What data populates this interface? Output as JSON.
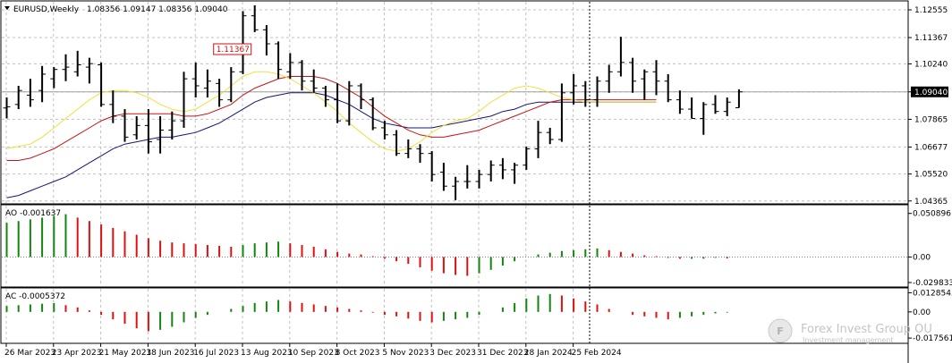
{
  "header": {
    "symbol": "EURUSD,Weekly",
    "ohlc": "1.08356 1.09147 1.08356 1.09040"
  },
  "watermark": {
    "brand": "Forex Invest Group OU",
    "tagline": "Investment management"
  },
  "colors": {
    "bar": "#000000",
    "grid": "#c0c0c0",
    "yellow_ma": "#f0e040",
    "red_ma": "#c81414",
    "blue_ma": "#141478",
    "ao_up": "#13860f",
    "ao_down": "#e01010"
  },
  "chart_data": [
    {
      "type": "ohlc",
      "title": "EURUSD,Weekly",
      "y_ticks": [
        "1.12555",
        "1.11367",
        "1.10240",
        "1.09040",
        "1.07865",
        "1.06677",
        "1.05520",
        "1.04365"
      ],
      "ylim": [
        1.0428,
        1.129
      ],
      "current_price": 1.0904,
      "annotated_high": "1.11367",
      "x_labels": [
        {
          "i": 0,
          "label": "26 Mar 2023"
        },
        {
          "i": 4,
          "label": "23 Apr 2023"
        },
        {
          "i": 8,
          "label": "21 May 2023"
        },
        {
          "i": 12,
          "label": "18 Jun 2023"
        },
        {
          "i": 16,
          "label": "16 Jul 2023"
        },
        {
          "i": 20,
          "label": "13 Aug 2023"
        },
        {
          "i": 24,
          "label": "10 Sep 2023"
        },
        {
          "i": 28,
          "label": "8 Oct 2023"
        },
        {
          "i": 32,
          "label": "5 Nov 2023"
        },
        {
          "i": 36,
          "label": "3 Dec 2023"
        },
        {
          "i": 40,
          "label": "31 Dec 2023"
        },
        {
          "i": 44,
          "label": "28 Jan 2024"
        },
        {
          "i": 48,
          "label": "25 Feb 2024"
        }
      ],
      "bars": [
        [
          1.0835,
          1.088,
          1.079,
          1.084
        ],
        [
          1.085,
          1.093,
          1.083,
          1.091
        ],
        [
          1.089,
          1.096,
          1.084,
          1.087
        ],
        [
          1.091,
          1.1015,
          1.086,
          1.098
        ],
        [
          1.096,
          1.101,
          1.092,
          1.1
        ],
        [
          1.1,
          1.1065,
          1.095,
          1.101
        ],
        [
          1.099,
          1.108,
          1.097,
          1.102
        ],
        [
          1.101,
          1.105,
          1.094,
          1.1025
        ],
        [
          1.102,
          1.103,
          1.084,
          1.085
        ],
        [
          1.085,
          1.091,
          1.077,
          1.08
        ],
        [
          1.08,
          1.083,
          1.069,
          1.071
        ],
        [
          1.072,
          1.08,
          1.07,
          1.076
        ],
        [
          1.076,
          1.083,
          1.064,
          1.069
        ],
        [
          1.07,
          1.08,
          1.064,
          1.074
        ],
        [
          1.074,
          1.082,
          1.07,
          1.078
        ],
        [
          1.078,
          1.099,
          1.075,
          1.096
        ],
        [
          1.096,
          1.103,
          1.088,
          1.093
        ],
        [
          1.092,
          1.1,
          1.088,
          1.095
        ],
        [
          1.094,
          1.096,
          1.084,
          1.087
        ],
        [
          1.087,
          1.101,
          1.086,
          1.099
        ],
        [
          1.099,
          1.125,
          1.098,
          1.123
        ],
        [
          1.123,
          1.1275,
          1.116,
          1.117
        ],
        [
          1.117,
          1.119,
          1.106,
          1.111
        ],
        [
          1.111,
          1.112,
          1.096,
          1.1
        ],
        [
          1.099,
          1.107,
          1.096,
          1.103
        ],
        [
          1.103,
          1.104,
          1.091,
          1.095
        ],
        [
          1.095,
          1.1,
          1.09,
          1.092
        ],
        [
          1.092,
          1.093,
          1.084,
          1.087
        ],
        [
          1.087,
          1.094,
          1.077,
          1.078
        ],
        [
          1.078,
          1.095,
          1.076,
          1.093
        ],
        [
          1.093,
          1.094,
          1.083,
          1.087
        ],
        [
          1.087,
          1.088,
          1.074,
          1.075
        ],
        [
          1.075,
          1.078,
          1.07,
          1.072
        ],
        [
          1.072,
          1.074,
          1.063,
          1.064
        ],
        [
          1.064,
          1.07,
          1.062,
          1.066
        ],
        [
          1.066,
          1.068,
          1.06,
          1.064
        ],
        [
          1.064,
          1.065,
          1.052,
          1.055
        ],
        [
          1.056,
          1.06,
          1.048,
          1.05
        ],
        [
          1.05,
          1.054,
          1.044,
          1.052
        ],
        [
          1.052,
          1.059,
          1.049,
          1.052
        ],
        [
          1.052,
          1.057,
          1.049,
          1.055
        ],
        [
          1.055,
          1.061,
          1.052,
          1.059
        ],
        [
          1.059,
          1.062,
          1.053,
          1.057
        ],
        [
          1.057,
          1.06,
          1.051,
          1.059
        ],
        [
          1.059,
          1.067,
          1.057,
          1.066
        ],
        [
          1.066,
          1.078,
          1.062,
          1.073
        ],
        [
          1.073,
          1.075,
          1.068,
          1.07
        ],
        [
          1.07,
          1.094,
          1.069,
          1.09
        ],
        [
          1.09,
          1.098,
          1.085,
          1.093
        ],
        [
          1.093,
          1.095,
          1.084,
          1.087
        ],
        [
          1.087,
          1.097,
          1.084,
          1.095
        ],
        [
          1.095,
          1.102,
          1.09,
          1.099
        ],
        [
          1.099,
          1.114,
          1.097,
          1.103
        ],
        [
          1.103,
          1.105,
          1.09,
          1.095
        ],
        [
          1.096,
          1.1,
          1.087,
          1.099
        ],
        [
          1.099,
          1.104,
          1.089,
          1.095
        ],
        [
          1.095,
          1.098,
          1.086,
          1.087
        ],
        [
          1.087,
          1.091,
          1.081,
          1.083
        ],
        [
          1.083,
          1.088,
          1.079,
          1.079
        ],
        [
          1.079,
          1.086,
          1.072,
          1.085
        ],
        [
          1.085,
          1.089,
          1.081,
          1.082
        ],
        [
          1.082,
          1.088,
          1.08,
          1.086
        ],
        [
          1.0836,
          1.0915,
          1.0836,
          1.0904
        ]
      ],
      "ma_yellow": [
        1.066,
        1.067,
        1.068,
        1.071,
        1.075,
        1.079,
        1.083,
        1.087,
        1.09,
        1.091,
        1.091,
        1.09,
        1.088,
        1.085,
        1.083,
        1.082,
        1.083,
        1.086,
        1.089,
        1.093,
        1.097,
        1.099,
        1.099,
        1.098,
        1.096,
        1.093,
        1.09,
        1.086,
        1.082,
        1.077,
        1.073,
        1.069,
        1.066,
        1.065,
        1.066,
        1.069,
        1.073,
        1.076,
        1.078,
        1.079,
        1.082,
        1.086,
        1.089,
        1.092,
        1.093,
        1.092,
        1.09,
        1.088,
        1.087,
        1.086,
        1.086,
        1.086,
        1.086,
        1.086,
        1.086,
        1.086
      ],
      "ma_red": [
        1.061,
        1.061,
        1.062,
        1.064,
        1.066,
        1.069,
        1.072,
        1.075,
        1.078,
        1.08,
        1.081,
        1.081,
        1.081,
        1.081,
        1.081,
        1.08,
        1.08,
        1.081,
        1.083,
        1.085,
        1.089,
        1.092,
        1.094,
        1.096,
        1.097,
        1.097,
        1.097,
        1.096,
        1.094,
        1.091,
        1.088,
        1.084,
        1.08,
        1.077,
        1.074,
        1.072,
        1.071,
        1.071,
        1.072,
        1.073,
        1.074,
        1.076,
        1.078,
        1.08,
        1.082,
        1.084,
        1.086,
        1.087,
        1.087,
        1.087,
        1.087,
        1.087,
        1.087,
        1.087,
        1.087,
        1.087
      ],
      "ma_blue": [
        1.045,
        1.046,
        1.048,
        1.05,
        1.052,
        1.054,
        1.057,
        1.06,
        1.063,
        1.066,
        1.068,
        1.069,
        1.07,
        1.071,
        1.071,
        1.072,
        1.073,
        1.075,
        1.077,
        1.08,
        1.083,
        1.086,
        1.088,
        1.089,
        1.09,
        1.09,
        1.09,
        1.089,
        1.087,
        1.085,
        1.082,
        1.079,
        1.077,
        1.076,
        1.075,
        1.075,
        1.075,
        1.076,
        1.077,
        1.078,
        1.079,
        1.08,
        1.082,
        1.083,
        1.085,
        1.086,
        1.086,
        1.086,
        1.086,
        1.086,
        1.086,
        1.086,
        1.086,
        1.086,
        1.086,
        1.086
      ]
    },
    {
      "type": "histogram",
      "label": "AO -0.001637",
      "y_ticks": [
        "0.050896",
        "0.00",
        "-0.029833"
      ],
      "ylim": [
        -0.034,
        0.06
      ],
      "values": [
        0.04,
        0.042,
        0.044,
        0.046,
        0.048,
        0.05,
        0.046,
        0.042,
        0.038,
        0.034,
        0.03,
        0.026,
        0.022,
        0.019,
        0.017,
        0.016,
        0.015,
        0.014,
        0.013,
        0.012,
        0.014,
        0.016,
        0.017,
        0.018,
        0.016,
        0.014,
        0.012,
        0.009,
        0.006,
        0.004,
        0.003,
        0.001,
        -0.002,
        -0.005,
        -0.008,
        -0.012,
        -0.016,
        -0.019,
        -0.021,
        -0.022,
        -0.019,
        -0.015,
        -0.01,
        -0.005,
        0.0,
        0.003,
        0.005,
        0.007,
        0.008,
        0.009,
        0.01,
        0.008,
        0.006,
        0.004,
        0.002,
        0.001,
        -0.001,
        -0.002,
        -0.002,
        -0.002,
        -0.001,
        -0.0016
      ]
    },
    {
      "type": "histogram",
      "label": "AC -0.0005372",
      "y_ticks": [
        "0.0128545",
        "0.00",
        "-0.0175611"
      ],
      "ylim": [
        -0.0205,
        0.0155
      ],
      "values": [
        0.004,
        0.0045,
        0.005,
        0.0055,
        0.006,
        0.0045,
        0.003,
        0.001,
        -0.002,
        -0.005,
        -0.008,
        -0.011,
        -0.013,
        -0.012,
        -0.01,
        -0.007,
        -0.004,
        -0.002,
        0.0,
        0.002,
        0.004,
        0.006,
        0.007,
        0.008,
        0.007,
        0.006,
        0.005,
        0.004,
        0.003,
        0.002,
        0.001,
        -0.0005,
        -0.002,
        -0.003,
        -0.0045,
        -0.006,
        -0.007,
        -0.006,
        -0.005,
        -0.004,
        -0.002,
        0.0,
        0.003,
        0.006,
        0.009,
        0.011,
        0.012,
        0.011,
        0.009,
        0.007,
        0.005,
        0.002,
        0.0,
        -0.002,
        -0.003,
        -0.004,
        -0.005,
        -0.004,
        -0.003,
        -0.002,
        -0.001,
        -0.0005
      ]
    }
  ]
}
